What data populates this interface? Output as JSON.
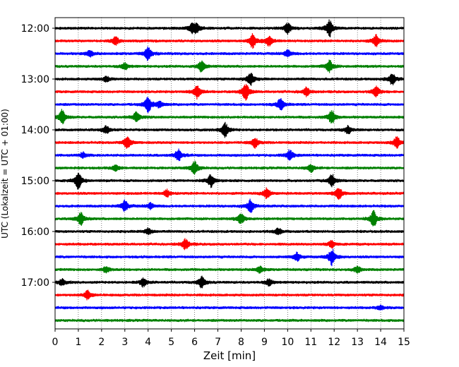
{
  "chart_data": {
    "type": "line",
    "xlabel": "Zeit  [min]",
    "ylabel": "UTC (Lokalzeit = UTC + 01:00)",
    "xlim": [
      0,
      15
    ],
    "x_ticks": [
      "0",
      "1",
      "2",
      "3",
      "4",
      "5",
      "6",
      "7",
      "8",
      "9",
      "10",
      "11",
      "12",
      "13",
      "14",
      "15"
    ],
    "y_tick_labels": [
      "12:00",
      "13:00",
      "14:00",
      "15:00",
      "16:00",
      "17:00"
    ],
    "trace_interval_min": 15,
    "grid": "vertical dotted",
    "series_colors": [
      "#000000",
      "#ff0000",
      "#0000ff",
      "#008000"
    ],
    "traces": [
      {
        "start": "12:00",
        "color": "#000000",
        "events": [
          [
            5.9,
            0.9
          ],
          [
            10.0,
            1.0
          ],
          [
            11.8,
            1.6
          ],
          [
            6.1,
            0.7
          ]
        ]
      },
      {
        "start": "12:15",
        "color": "#ff0000",
        "events": [
          [
            2.6,
            0.8
          ],
          [
            8.5,
            1.3
          ],
          [
            9.2,
            0.9
          ],
          [
            13.8,
            1.1
          ]
        ]
      },
      {
        "start": "12:30",
        "color": "#0000ff",
        "events": [
          [
            4.0,
            1.2
          ],
          [
            1.5,
            0.6
          ],
          [
            10.0,
            0.7
          ]
        ]
      },
      {
        "start": "12:45",
        "color": "#008000",
        "events": [
          [
            6.3,
            1.0
          ],
          [
            11.8,
            1.1
          ],
          [
            3.0,
            0.6
          ]
        ]
      },
      {
        "start": "13:00",
        "color": "#000000",
        "events": [
          [
            8.4,
            1.2
          ],
          [
            14.5,
            1.1
          ],
          [
            2.2,
            0.5
          ]
        ]
      },
      {
        "start": "13:15",
        "color": "#ff0000",
        "events": [
          [
            6.1,
            1.3
          ],
          [
            8.2,
            1.6
          ],
          [
            10.8,
            0.8
          ],
          [
            13.8,
            1.0
          ]
        ]
      },
      {
        "start": "13:30",
        "color": "#0000ff",
        "events": [
          [
            4.0,
            1.4
          ],
          [
            9.7,
            1.1
          ],
          [
            4.5,
            0.6
          ]
        ]
      },
      {
        "start": "13:45",
        "color": "#008000",
        "events": [
          [
            0.3,
            1.3
          ],
          [
            3.5,
            1.0
          ],
          [
            11.9,
            1.3
          ]
        ]
      },
      {
        "start": "14:00",
        "color": "#000000",
        "events": [
          [
            7.3,
            1.4
          ],
          [
            2.2,
            0.7
          ],
          [
            12.6,
            0.7
          ]
        ]
      },
      {
        "start": "14:15",
        "color": "#ff0000",
        "events": [
          [
            3.1,
            1.2
          ],
          [
            8.6,
            0.9
          ],
          [
            14.7,
            1.1
          ]
        ]
      },
      {
        "start": "14:30",
        "color": "#0000ff",
        "events": [
          [
            5.3,
            1.1
          ],
          [
            10.1,
            1.0
          ],
          [
            1.2,
            0.5
          ]
        ]
      },
      {
        "start": "14:45",
        "color": "#008000",
        "events": [
          [
            6.0,
            1.3
          ],
          [
            11.0,
            0.7
          ],
          [
            2.6,
            0.6
          ]
        ]
      },
      {
        "start": "15:00",
        "color": "#000000",
        "events": [
          [
            1.0,
            1.5
          ],
          [
            6.7,
            1.1
          ],
          [
            11.9,
            1.2
          ]
        ]
      },
      {
        "start": "15:15",
        "color": "#ff0000",
        "events": [
          [
            9.1,
            1.0
          ],
          [
            12.2,
            1.1
          ],
          [
            4.8,
            0.7
          ]
        ]
      },
      {
        "start": "15:30",
        "color": "#0000ff",
        "events": [
          [
            3.0,
            1.0
          ],
          [
            8.4,
            1.2
          ],
          [
            4.1,
            0.6
          ]
        ]
      },
      {
        "start": "15:45",
        "color": "#008000",
        "events": [
          [
            1.1,
            1.2
          ],
          [
            8.0,
            1.0
          ],
          [
            13.7,
            1.5
          ]
        ]
      },
      {
        "start": "16:00",
        "color": "#000000",
        "events": [
          [
            4.0,
            0.6
          ],
          [
            9.6,
            0.6
          ]
        ]
      },
      {
        "start": "16:15",
        "color": "#ff0000",
        "events": [
          [
            5.6,
            1.0
          ],
          [
            11.9,
            0.7
          ]
        ]
      },
      {
        "start": "16:30",
        "color": "#0000ff",
        "events": [
          [
            11.9,
            1.5
          ],
          [
            10.4,
            0.8
          ]
        ]
      },
      {
        "start": "16:45",
        "color": "#008000",
        "events": [
          [
            2.2,
            0.6
          ],
          [
            8.8,
            0.6
          ],
          [
            13.0,
            0.6
          ]
        ]
      },
      {
        "start": "17:00",
        "color": "#000000",
        "events": [
          [
            0.3,
            0.6
          ],
          [
            3.8,
            0.8
          ],
          [
            6.3,
            1.1
          ],
          [
            9.2,
            0.6
          ]
        ]
      },
      {
        "start": "17:15",
        "color": "#ff0000",
        "events": [
          [
            1.4,
            0.8
          ]
        ]
      },
      {
        "start": "17:30",
        "color": "#0000ff",
        "events": [
          [
            14.0,
            0.4
          ]
        ]
      },
      {
        "start": "17:45",
        "color": "#008000",
        "events": []
      }
    ]
  }
}
